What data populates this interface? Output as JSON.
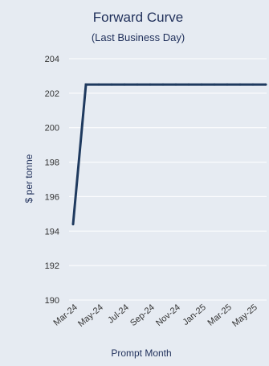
{
  "chart_data": {
    "type": "line",
    "title": "Forward Curve",
    "subtitle": "(Last Business Day)",
    "xlabel": "Prompt Month",
    "ylabel": "$ per tonne",
    "ylim": [
      190,
      204
    ],
    "yticks": [
      "190",
      "192",
      "194",
      "196",
      "198",
      "200",
      "202",
      "204"
    ],
    "x_tick_labels": [
      "Mar-24",
      "May-24",
      "Jul-24",
      "Sep-24",
      "Nov-24",
      "Jan-25",
      "Mar-25",
      "May-25"
    ],
    "grid": true,
    "x": [
      "Mar-24",
      "Apr-24",
      "May-24",
      "Jun-24",
      "Jul-24",
      "Aug-24",
      "Sep-24",
      "Oct-24",
      "Nov-24",
      "Dec-24",
      "Jan-25",
      "Feb-25",
      "Mar-25",
      "Apr-25",
      "May-25",
      "Jun-25"
    ],
    "series": [
      {
        "values": [
          194.4,
          202.5,
          202.5,
          202.5,
          202.5,
          202.5,
          202.5,
          202.5,
          202.5,
          202.5,
          202.5,
          202.5,
          202.5,
          202.5,
          202.5,
          202.5
        ]
      }
    ]
  },
  "colors": {
    "background": "#e6ebf2",
    "line": "#1f3a5f",
    "grid": "#ffffff",
    "title": "#1f2f5a"
  }
}
